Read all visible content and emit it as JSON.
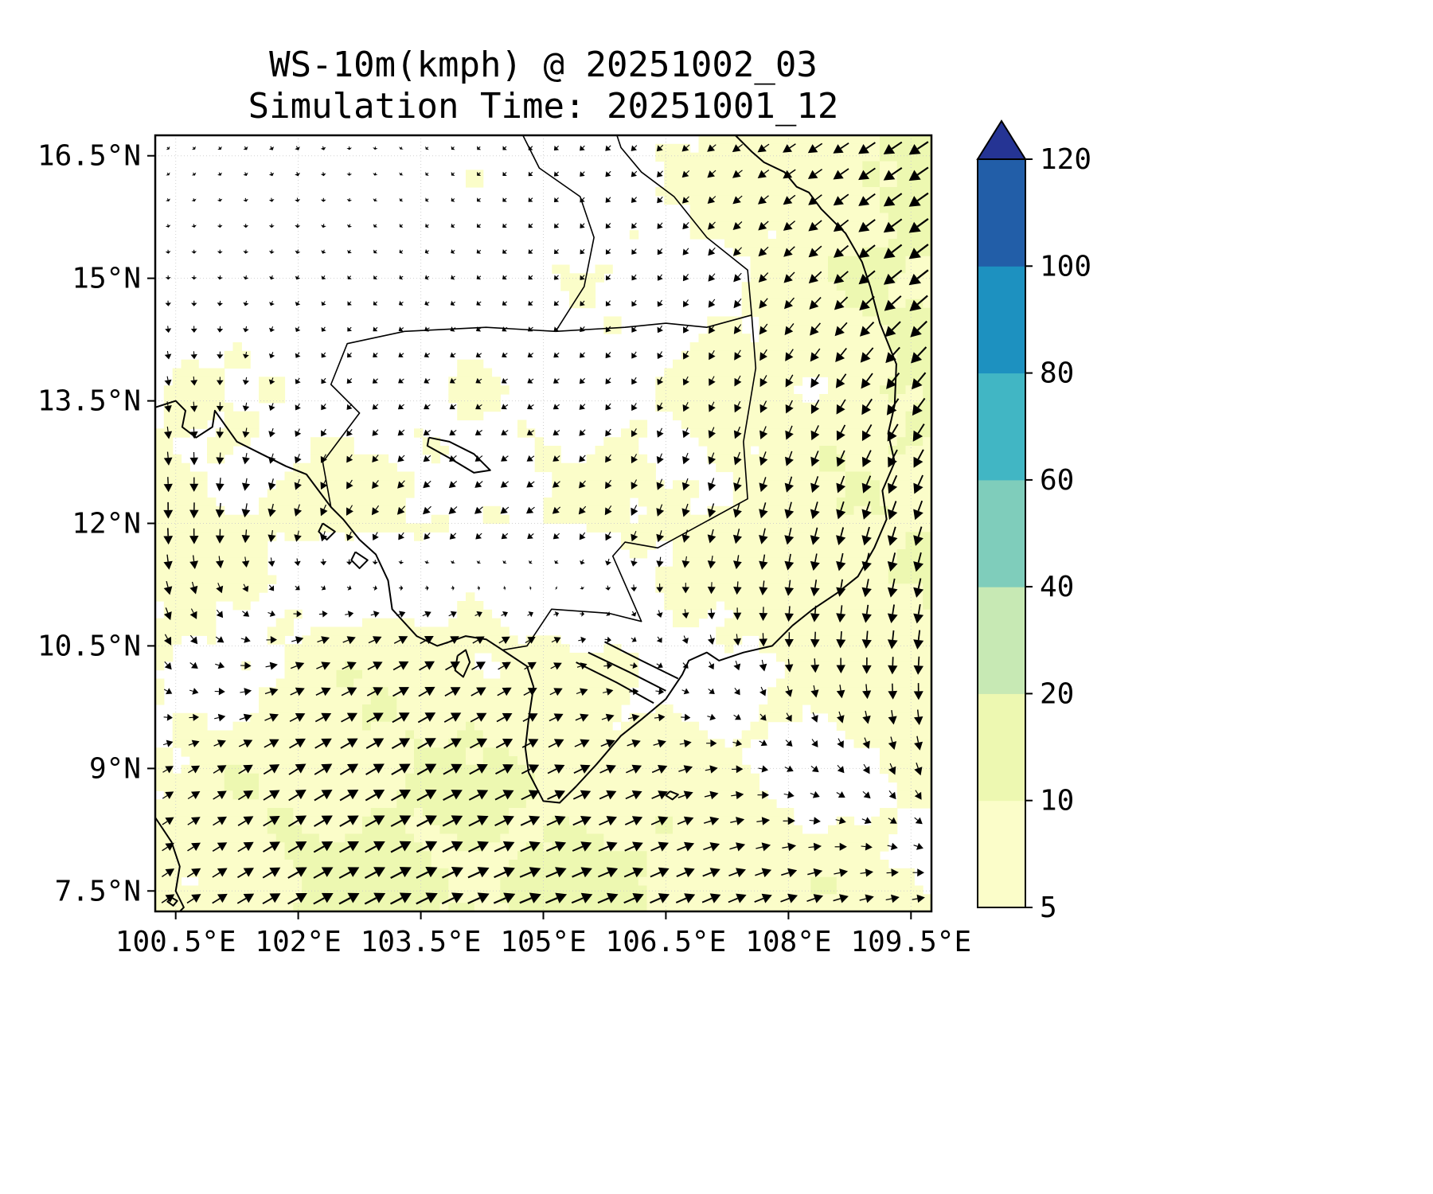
{
  "chart_data": {
    "type": "heatmap",
    "subtype": "wind-speed-quiver-map",
    "title": "WS-10m(kmph) @ 20251002_03",
    "subtitle": "Simulation Time: 20251001_12",
    "xlabel": "",
    "ylabel": "",
    "x_ticks": [
      "100.5°E",
      "102°E",
      "103.5°E",
      "105°E",
      "106.5°E",
      "108°E",
      "109.5°E"
    ],
    "x_tick_lons": [
      100.5,
      102,
      103.5,
      105,
      106.5,
      108,
      109.5
    ],
    "y_ticks": [
      "16.5°N",
      "15°N",
      "13.5°N",
      "12°N",
      "10.5°N",
      "9°N",
      "7.5°N"
    ],
    "y_tick_lats": [
      16.5,
      15,
      13.5,
      12,
      10.5,
      9,
      7.5
    ],
    "lon_range": [
      100.25,
      109.75
    ],
    "lat_range": [
      7.25,
      16.75
    ],
    "grid_on": true,
    "colorbar": {
      "levels": [
        5,
        10,
        20,
        40,
        60,
        80,
        100,
        120
      ],
      "labels": [
        "5",
        "10",
        "20",
        "40",
        "60",
        "80",
        "100",
        "120"
      ],
      "colors": [
        "#fbfdc9",
        "#edf8b1",
        "#c7e9b4",
        "#7fcdbb",
        "#41b6c4",
        "#1d91c0",
        "#225ea8"
      ],
      "over_color": "#253494",
      "under_color": "#ffffff",
      "position": "right"
    },
    "wind_grid": {
      "units": "kmph",
      "lons": [
        100.5,
        102,
        103.5,
        105,
        106.5,
        108,
        109.5
      ],
      "lats": [
        16.5,
        15,
        13.5,
        12,
        10.5,
        9,
        7.5
      ],
      "u": [
        [
          1,
          1,
          -1,
          -2,
          -3,
          -6,
          -9
        ],
        [
          0,
          -1,
          -2,
          -2,
          -2,
          -5,
          -9
        ],
        [
          1,
          -2,
          -3,
          -3,
          -2,
          -3,
          -6
        ],
        [
          0,
          -2,
          -4,
          -4,
          -2,
          -2,
          -3
        ],
        [
          3,
          6,
          7,
          5,
          2,
          0,
          -1
        ],
        [
          5,
          8,
          9,
          8,
          7,
          4,
          2
        ],
        [
          6,
          9,
          10,
          10,
          9,
          8,
          6
        ]
      ],
      "v": [
        [
          -1,
          -2,
          -1,
          -2,
          -3,
          -4,
          -6
        ],
        [
          -2,
          -2,
          -1,
          -2,
          -3,
          -5,
          -7
        ],
        [
          -5,
          -3,
          -2,
          -2,
          -4,
          -6,
          -8
        ],
        [
          -8,
          -6,
          -4,
          -3,
          -6,
          -8,
          -9
        ],
        [
          -5,
          2,
          4,
          3,
          -3,
          -7,
          -9
        ],
        [
          3,
          5,
          5,
          4,
          3,
          -2,
          -6
        ],
        [
          4,
          5,
          5,
          4,
          4,
          3,
          1
        ]
      ]
    },
    "coastlines": [
      [
        [
          100.25,
          13.42
        ],
        [
          100.5,
          13.5
        ],
        [
          100.62,
          13.38
        ],
        [
          100.58,
          13.18
        ],
        [
          100.75,
          13.05
        ],
        [
          100.95,
          13.18
        ],
        [
          100.98,
          13.38
        ],
        [
          101.25,
          13.0
        ],
        [
          101.55,
          12.85
        ],
        [
          101.85,
          12.7
        ],
        [
          102.1,
          12.6
        ],
        [
          102.4,
          12.2
        ],
        [
          102.55,
          12.05
        ],
        [
          102.75,
          11.8
        ],
        [
          102.95,
          11.62
        ],
        [
          103.1,
          11.3
        ],
        [
          103.15,
          10.95
        ],
        [
          103.45,
          10.62
        ],
        [
          103.7,
          10.5
        ],
        [
          103.85,
          10.55
        ],
        [
          104.05,
          10.62
        ],
        [
          104.3,
          10.58
        ],
        [
          104.5,
          10.45
        ],
        [
          104.8,
          10.25
        ],
        [
          104.88,
          10.0
        ],
        [
          104.82,
          9.6
        ],
        [
          104.78,
          9.25
        ],
        [
          104.82,
          8.95
        ],
        [
          105.0,
          8.6
        ],
        [
          105.2,
          8.58
        ],
        [
          105.4,
          8.78
        ],
        [
          105.65,
          9.05
        ],
        [
          105.95,
          9.4
        ],
        [
          106.2,
          9.6
        ],
        [
          106.5,
          9.85
        ],
        [
          106.7,
          10.15
        ],
        [
          106.78,
          10.32
        ],
        [
          107.0,
          10.42
        ],
        [
          107.15,
          10.32
        ],
        [
          107.45,
          10.42
        ],
        [
          107.8,
          10.5
        ],
        [
          108.05,
          10.75
        ],
        [
          108.3,
          10.95
        ],
        [
          108.6,
          11.15
        ],
        [
          108.85,
          11.35
        ],
        [
          109.05,
          11.7
        ],
        [
          109.2,
          12.05
        ],
        [
          109.15,
          12.4
        ],
        [
          109.3,
          12.75
        ],
        [
          109.22,
          13.1
        ],
        [
          109.3,
          13.45
        ],
        [
          109.32,
          13.95
        ],
        [
          109.12,
          14.45
        ],
        [
          109.0,
          14.9
        ],
        [
          108.9,
          15.2
        ],
        [
          108.7,
          15.55
        ],
        [
          108.4,
          15.85
        ],
        [
          108.25,
          16.05
        ],
        [
          108.1,
          16.12
        ],
        [
          107.95,
          16.3
        ],
        [
          107.7,
          16.42
        ],
        [
          107.55,
          16.55
        ],
        [
          107.35,
          16.75
        ]
      ],
      [
        [
          100.25,
          8.4
        ],
        [
          100.45,
          8.1
        ],
        [
          100.55,
          7.8
        ],
        [
          100.5,
          7.5
        ],
        [
          100.6,
          7.3
        ],
        [
          100.55,
          7.25
        ]
      ],
      [
        [
          100.45,
          7.42
        ],
        [
          100.52,
          7.38
        ],
        [
          100.47,
          7.32
        ],
        [
          100.4,
          7.37
        ],
        [
          100.45,
          7.42
        ]
      ],
      [
        [
          103.95,
          10.38
        ],
        [
          104.05,
          10.45
        ],
        [
          104.1,
          10.3
        ],
        [
          104.02,
          10.12
        ],
        [
          103.92,
          10.2
        ],
        [
          103.95,
          10.38
        ]
      ],
      [
        [
          102.3,
          12.0
        ],
        [
          102.45,
          11.9
        ],
        [
          102.35,
          11.8
        ],
        [
          102.25,
          11.9
        ],
        [
          102.3,
          12.0
        ]
      ],
      [
        [
          102.7,
          11.65
        ],
        [
          102.85,
          11.55
        ],
        [
          102.75,
          11.45
        ],
        [
          102.65,
          11.55
        ],
        [
          102.7,
          11.65
        ]
      ],
      [
        [
          106.55,
          8.72
        ],
        [
          106.65,
          8.68
        ],
        [
          106.58,
          8.62
        ],
        [
          106.5,
          8.67
        ],
        [
          106.55,
          8.72
        ]
      ],
      [
        [
          103.6,
          13.05
        ],
        [
          103.85,
          13.0
        ],
        [
          104.15,
          12.85
        ],
        [
          104.35,
          12.65
        ],
        [
          104.15,
          12.62
        ],
        [
          103.85,
          12.8
        ],
        [
          103.58,
          12.95
        ],
        [
          103.6,
          13.05
        ]
      ],
      [
        [
          105.4,
          10.3
        ],
        [
          105.9,
          10.05
        ],
        [
          106.35,
          9.8
        ]
      ],
      [
        [
          105.55,
          10.42
        ],
        [
          106.05,
          10.18
        ],
        [
          106.5,
          9.95
        ]
      ],
      [
        [
          105.75,
          10.55
        ],
        [
          106.2,
          10.32
        ],
        [
          106.65,
          10.1
        ]
      ]
    ],
    "borders": [
      [
        [
          102.4,
          12.2
        ],
        [
          102.3,
          12.75
        ],
        [
          102.75,
          13.35
        ],
        [
          102.4,
          13.7
        ],
        [
          102.6,
          14.2
        ],
        [
          103.3,
          14.35
        ],
        [
          104.3,
          14.4
        ],
        [
          105.15,
          14.35
        ]
      ],
      [
        [
          105.15,
          14.35
        ],
        [
          105.5,
          14.9
        ],
        [
          105.62,
          15.5
        ],
        [
          105.45,
          16.0
        ],
        [
          104.95,
          16.35
        ],
        [
          104.75,
          16.75
        ]
      ],
      [
        [
          105.15,
          14.35
        ],
        [
          106.0,
          14.4
        ],
        [
          106.5,
          14.45
        ],
        [
          107.0,
          14.4
        ],
        [
          107.55,
          14.55
        ]
      ],
      [
        [
          107.55,
          14.55
        ],
        [
          107.5,
          15.1
        ],
        [
          107.0,
          15.5
        ],
        [
          106.6,
          16.0
        ],
        [
          106.2,
          16.3
        ],
        [
          105.95,
          16.6
        ],
        [
          105.9,
          16.75
        ]
      ],
      [
        [
          107.55,
          14.55
        ],
        [
          107.6,
          13.9
        ],
        [
          107.45,
          13.0
        ],
        [
          107.5,
          12.3
        ],
        [
          106.4,
          11.7
        ],
        [
          106.0,
          11.77
        ],
        [
          105.85,
          11.6
        ],
        [
          106.2,
          10.8
        ],
        [
          105.8,
          10.9
        ],
        [
          105.1,
          10.95
        ],
        [
          104.8,
          10.5
        ],
        [
          104.5,
          10.45
        ]
      ]
    ],
    "arrow_color": "#000000",
    "coast_color": "#000000",
    "grid_color": "#cccccc",
    "frame_color": "#000000",
    "background": "#ffffff"
  }
}
